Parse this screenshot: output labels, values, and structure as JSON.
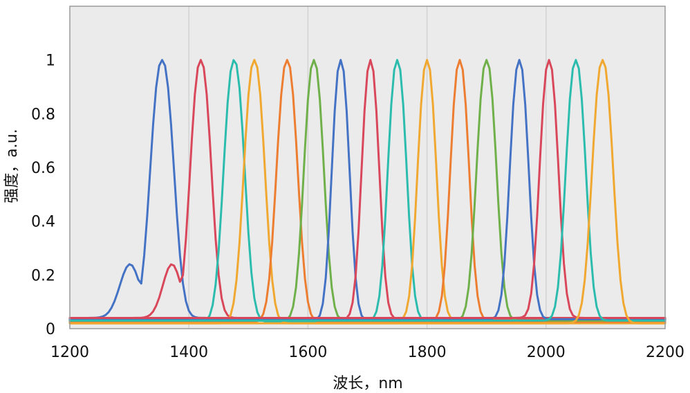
{
  "chart_data": {
    "type": "line",
    "xlabel": "波长，nm",
    "ylabel": "强度，a.u.",
    "xlim": [
      1200,
      2200
    ],
    "ylim": [
      0,
      1.2
    ],
    "xticks": [
      1200,
      1400,
      1600,
      1800,
      2000,
      2200
    ],
    "yticks": [
      0,
      0.2,
      0.4,
      0.6,
      0.8,
      1
    ],
    "ytick_labels": [
      "0",
      "0.2",
      "0.4",
      "0.6",
      "0.8",
      "1"
    ],
    "grid": "vertical",
    "plot_background": "#ebebeb",
    "baseline_level": 0.03,
    "series": [
      {
        "color": "#4472c4",
        "center": 1355,
        "width": 40,
        "baseline": 0.04,
        "shoulder": true
      },
      {
        "color": "#d9475b",
        "center": 1420,
        "width": 36,
        "baseline": 0.04,
        "shoulder": true
      },
      {
        "color": "#2bbcae",
        "center": 1476,
        "width": 36,
        "baseline": 0.025
      },
      {
        "color": "#f0a830",
        "center": 1510,
        "width": 36,
        "baseline": 0.02
      },
      {
        "color": "#ed7d31",
        "center": 1565,
        "width": 36,
        "baseline": 0.025
      },
      {
        "color": "#70b04a",
        "center": 1610,
        "width": 34,
        "baseline": 0.03
      },
      {
        "color": "#4472c4",
        "center": 1655,
        "width": 30,
        "baseline": 0.03
      },
      {
        "color": "#d9475b",
        "center": 1705,
        "width": 30,
        "baseline": 0.035
      },
      {
        "color": "#2bbcae",
        "center": 1750,
        "width": 32,
        "baseline": 0.03
      },
      {
        "color": "#f0a830",
        "center": 1800,
        "width": 32,
        "baseline": 0.03
      },
      {
        "color": "#ed7d31",
        "center": 1855,
        "width": 32,
        "baseline": 0.03
      },
      {
        "color": "#70b04a",
        "center": 1900,
        "width": 34,
        "baseline": 0.03
      },
      {
        "color": "#4472c4",
        "center": 1955,
        "width": 32,
        "baseline": 0.035
      },
      {
        "color": "#d9475b",
        "center": 2005,
        "width": 32,
        "baseline": 0.04
      },
      {
        "color": "#2bbcae",
        "center": 2050,
        "width": 34,
        "baseline": 0.03
      },
      {
        "color": "#f0a830",
        "center": 2095,
        "width": 36,
        "baseline": 0.02
      }
    ]
  }
}
